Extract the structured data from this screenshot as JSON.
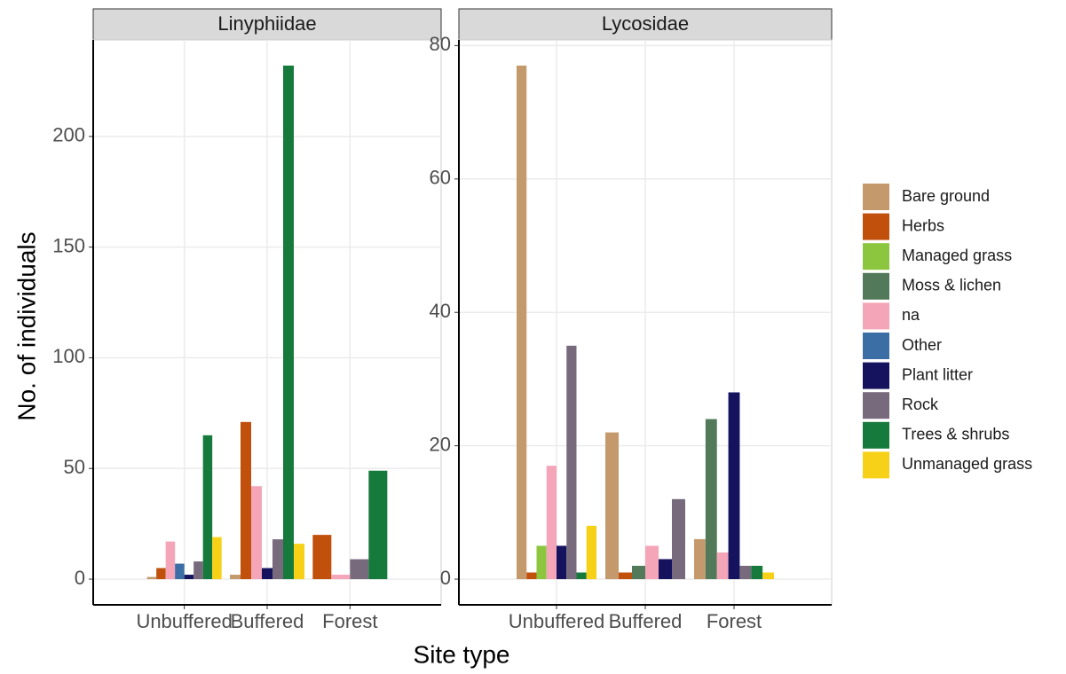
{
  "chart_data": [
    {
      "type": "bar",
      "title": "Linyphiidae",
      "y_label": "No. of individuals",
      "x_label": "Site type",
      "categories": [
        "Unbuffered",
        "Buffered",
        "Forest"
      ],
      "series": [
        {
          "name": "Bare ground",
          "color": "#c49a6c",
          "values": [
            1,
            2,
            null
          ]
        },
        {
          "name": "Herbs",
          "color": "#c0500c",
          "values": [
            5,
            71,
            20
          ]
        },
        {
          "name": "Managed grass",
          "color": "#8cc63f",
          "values": [
            null,
            null,
            null
          ]
        },
        {
          "name": "Moss & lichen",
          "color": "#52795a",
          "values": [
            null,
            null,
            null
          ]
        },
        {
          "name": "na",
          "color": "#f4a6b8",
          "values": [
            17,
            42,
            2
          ]
        },
        {
          "name": "Other",
          "color": "#3a6ea5",
          "values": [
            7,
            null,
            null
          ]
        },
        {
          "name": "Plant litter",
          "color": "#15125e",
          "values": [
            2,
            5,
            null
          ]
        },
        {
          "name": "Rock",
          "color": "#786a7d",
          "values": [
            8,
            18,
            9
          ]
        },
        {
          "name": "Trees & shrubs",
          "color": "#157a3c",
          "values": [
            65,
            232,
            49
          ]
        },
        {
          "name": "Unmanaged grass",
          "color": "#f7d117",
          "values": [
            19,
            16,
            null
          ]
        }
      ],
      "ylim": [
        -11.6,
        243.6
      ],
      "yticks": [
        0,
        50,
        100,
        150,
        200
      ],
      "grid": true
    },
    {
      "type": "bar",
      "title": "Lycosidae",
      "categories": [
        "Unbuffered",
        "Buffered",
        "Forest"
      ],
      "series": [
        {
          "name": "Bare ground",
          "color": "#c49a6c",
          "values": [
            77,
            22,
            6
          ]
        },
        {
          "name": "Herbs",
          "color": "#c0500c",
          "values": [
            1,
            1,
            null
          ]
        },
        {
          "name": "Managed grass",
          "color": "#8cc63f",
          "values": [
            5,
            null,
            null
          ]
        },
        {
          "name": "Moss & lichen",
          "color": "#52795a",
          "values": [
            null,
            2,
            24
          ]
        },
        {
          "name": "na",
          "color": "#f4a6b8",
          "values": [
            17,
            5,
            4
          ]
        },
        {
          "name": "Other",
          "color": "#3a6ea5",
          "values": [
            null,
            null,
            null
          ]
        },
        {
          "name": "Plant litter",
          "color": "#15125e",
          "values": [
            5,
            3,
            28
          ]
        },
        {
          "name": "Rock",
          "color": "#786a7d",
          "values": [
            35,
            12,
            2
          ]
        },
        {
          "name": "Trees & shrubs",
          "color": "#157a3c",
          "values": [
            1,
            null,
            2
          ]
        },
        {
          "name": "Unmanaged grass",
          "color": "#f7d117",
          "values": [
            8,
            null,
            1
          ]
        }
      ],
      "ylim": [
        -3.85,
        80.85
      ],
      "yticks": [
        0,
        20,
        40,
        60,
        80
      ],
      "grid": true
    }
  ]
}
